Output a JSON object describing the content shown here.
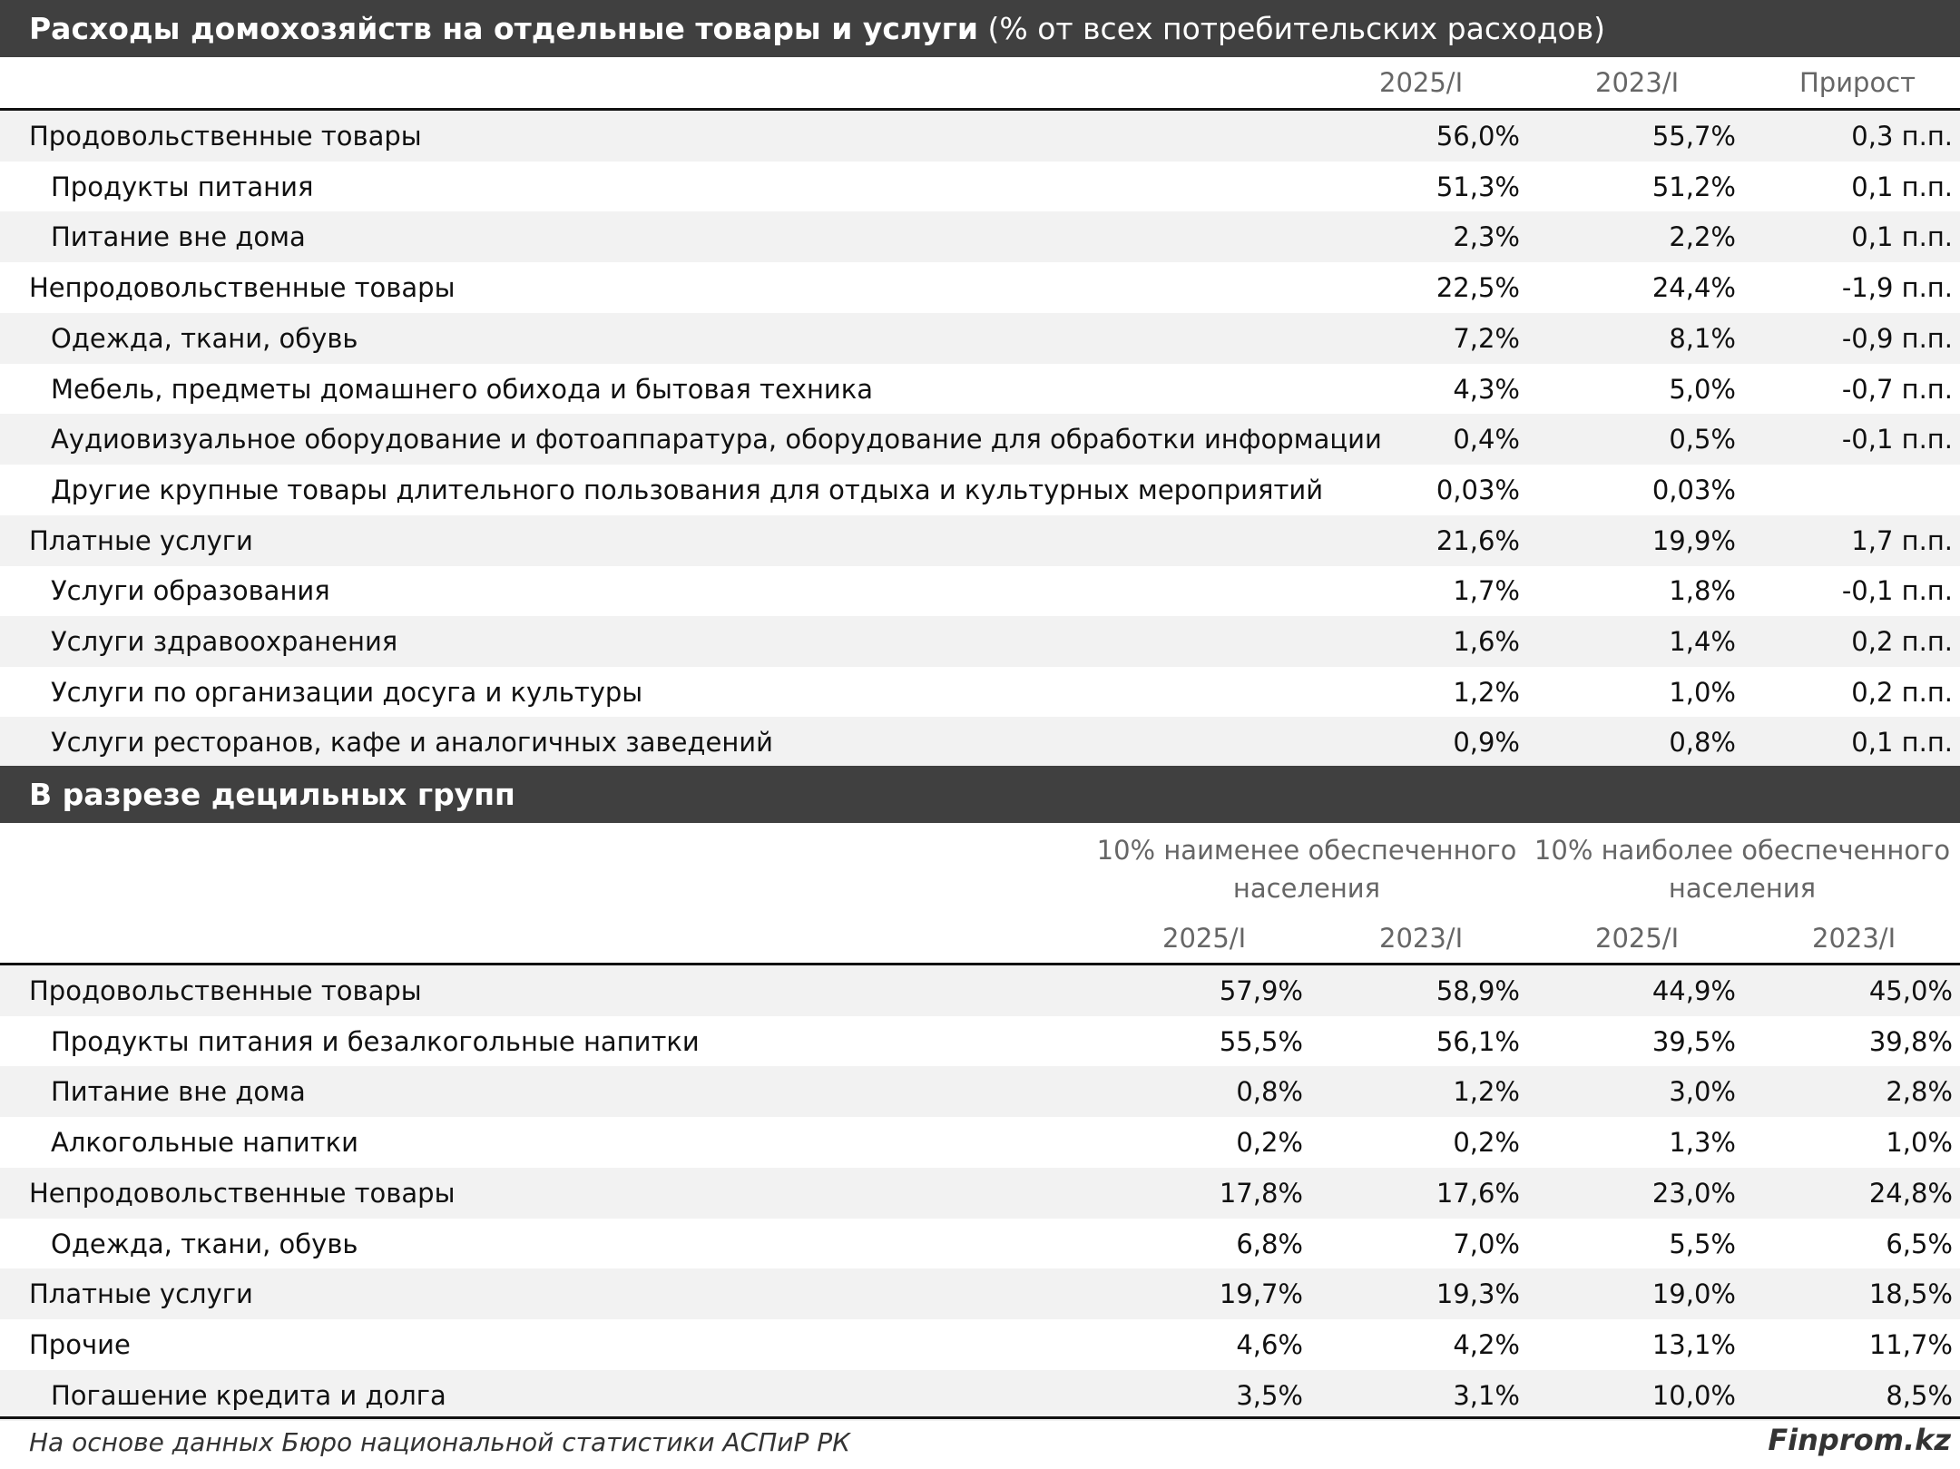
{
  "section1": {
    "title_bold": "Расходы домохозяйств на отдельные товары и услуги",
    "title_rest": " (% от всех потребительских расходов)",
    "headers": [
      "2025/I",
      "2023/I",
      "Прирост"
    ],
    "rows": [
      {
        "label": "Продовольственные товары",
        "v1": "56,0%",
        "v2": "55,7%",
        "v3": "0,3 п.п.",
        "indent": false
      },
      {
        "label": "Продукты питания",
        "v1": "51,3%",
        "v2": "51,2%",
        "v3": "0,1 п.п.",
        "indent": true
      },
      {
        "label": "Питание вне дома",
        "v1": "2,3%",
        "v2": "2,2%",
        "v3": "0,1 п.п.",
        "indent": true
      },
      {
        "label": "Непродовольственные товары",
        "v1": "22,5%",
        "v2": "24,4%",
        "v3": "-1,9 п.п.",
        "indent": false
      },
      {
        "label": "Одежда, ткани, обувь",
        "v1": "7,2%",
        "v2": "8,1%",
        "v3": "-0,9 п.п.",
        "indent": true
      },
      {
        "label": "Мебель, предметы домашнего обихода и бытовая техника",
        "v1": "4,3%",
        "v2": "5,0%",
        "v3": "-0,7 п.п.",
        "indent": true
      },
      {
        "label": "Аудиовизуальное оборудование и фотоаппаратура, оборудование для обработки информации",
        "v1": "0,4%",
        "v2": "0,5%",
        "v3": "-0,1 п.п.",
        "indent": true
      },
      {
        "label": "Другие крупные товары длительного пользования для отдыха и культурных мероприятий",
        "v1": "0,03%",
        "v2": "0,03%",
        "v3": "",
        "indent": true
      },
      {
        "label": "Платные услуги",
        "v1": "21,6%",
        "v2": "19,9%",
        "v3": "1,7 п.п.",
        "indent": false
      },
      {
        "label": "Услуги образования",
        "v1": "1,7%",
        "v2": "1,8%",
        "v3": "-0,1 п.п.",
        "indent": true
      },
      {
        "label": "Услуги здравоохранения",
        "v1": "1,6%",
        "v2": "1,4%",
        "v3": "0,2 п.п.",
        "indent": true
      },
      {
        "label": "Услуги по организации досуга и культуры",
        "v1": "1,2%",
        "v2": "1,0%",
        "v3": "0,2 п.п.",
        "indent": true
      },
      {
        "label": "Услуги ресторанов, кафе и аналогичных заведений",
        "v1": "0,9%",
        "v2": "0,8%",
        "v3": "0,1 п.п.",
        "indent": true
      }
    ]
  },
  "section2": {
    "title": "В разрезе децильных групп",
    "group_low": "10% наименее обеспеченного населения",
    "group_high": "10% наиболее обеспеченного населения",
    "headers": [
      "2025/I",
      "2023/I",
      "2025/I",
      "2023/I"
    ],
    "rows": [
      {
        "label": "Продовольственные товары",
        "v": [
          "57,9%",
          "58,9%",
          "44,9%",
          "45,0%"
        ],
        "indent": false
      },
      {
        "label": "Продукты питания и безалкогольные напитки",
        "v": [
          "55,5%",
          "56,1%",
          "39,5%",
          "39,8%"
        ],
        "indent": true
      },
      {
        "label": "Питание вне дома",
        "v": [
          "0,8%",
          "1,2%",
          "3,0%",
          "2,8%"
        ],
        "indent": true
      },
      {
        "label": "Алкогольные напитки",
        "v": [
          "0,2%",
          "0,2%",
          "1,3%",
          "1,0%"
        ],
        "indent": true
      },
      {
        "label": "Непродовольственные товары",
        "v": [
          "17,8%",
          "17,6%",
          "23,0%",
          "24,8%"
        ],
        "indent": false
      },
      {
        "label": "Одежда, ткани, обувь",
        "v": [
          "6,8%",
          "7,0%",
          "5,5%",
          "6,5%"
        ],
        "indent": true
      },
      {
        "label": "Платные услуги",
        "v": [
          "19,7%",
          "19,3%",
          "19,0%",
          "18,5%"
        ],
        "indent": false
      },
      {
        "label": "Прочие",
        "v": [
          "4,6%",
          "4,2%",
          "13,1%",
          "11,7%"
        ],
        "indent": false
      },
      {
        "label": "Погашение кредита и долга",
        "v": [
          "3,5%",
          "3,1%",
          "10,0%",
          "8,5%"
        ],
        "indent": true
      }
    ]
  },
  "footer": {
    "source": "На основе данных Бюро национальной статистики АСПиР РК",
    "brand": "Finprom.kz"
  },
  "chart_data": [
    {
      "type": "table",
      "title": "Расходы домохозяйств на отдельные товары и услуги (% от всех потребительских расходов)",
      "columns": [
        "2025/I",
        "2023/I",
        "Прирост"
      ],
      "rows": [
        [
          "Продовольственные товары",
          56.0,
          55.7,
          0.3
        ],
        [
          "Продукты питания",
          51.3,
          51.2,
          0.1
        ],
        [
          "Питание вне дома",
          2.3,
          2.2,
          0.1
        ],
        [
          "Непродовольственные товары",
          22.5,
          24.4,
          -1.9
        ],
        [
          "Одежда, ткани, обувь",
          7.2,
          8.1,
          -0.9
        ],
        [
          "Мебель, предметы домашнего обихода и бытовая техника",
          4.3,
          5.0,
          -0.7
        ],
        [
          "Аудиовизуальное оборудование и фотоаппаратура, оборудование для обработки информации",
          0.4,
          0.5,
          -0.1
        ],
        [
          "Другие крупные товары длительного пользования для отдыха и культурных мероприятий",
          0.03,
          0.03,
          null
        ],
        [
          "Платные услуги",
          21.6,
          19.9,
          1.7
        ],
        [
          "Услуги образования",
          1.7,
          1.8,
          -0.1
        ],
        [
          "Услуги здравоохранения",
          1.6,
          1.4,
          0.2
        ],
        [
          "Услуги по организации досуга и культуры",
          1.2,
          1.0,
          0.2
        ],
        [
          "Услуги ресторанов, кафе и аналогичных заведений",
          0.9,
          0.8,
          0.1
        ]
      ]
    },
    {
      "type": "table",
      "title": "В разрезе децильных групп",
      "columns": [
        "10% наименее обеспеченного населения 2025/I",
        "10% наименее обеспеченного населения 2023/I",
        "10% наиболее обеспеченного населения 2025/I",
        "10% наиболее обеспеченного населения 2023/I"
      ],
      "rows": [
        [
          "Продовольственные товары",
          57.9,
          58.9,
          44.9,
          45.0
        ],
        [
          "Продукты питания и безалкогольные напитки",
          55.5,
          56.1,
          39.5,
          39.8
        ],
        [
          "Питание вне дома",
          0.8,
          1.2,
          3.0,
          2.8
        ],
        [
          "Алкогольные напитки",
          0.2,
          0.2,
          1.3,
          1.0
        ],
        [
          "Непродовольственные товары",
          17.8,
          17.6,
          23.0,
          24.8
        ],
        [
          "Одежда, ткани, обувь",
          6.8,
          7.0,
          5.5,
          6.5
        ],
        [
          "Платные услуги",
          19.7,
          19.3,
          19.0,
          18.5
        ],
        [
          "Прочие",
          4.6,
          4.2,
          13.1,
          11.7
        ],
        [
          "Погашение кредита и долга",
          3.5,
          3.1,
          10.0,
          8.5
        ]
      ]
    }
  ]
}
